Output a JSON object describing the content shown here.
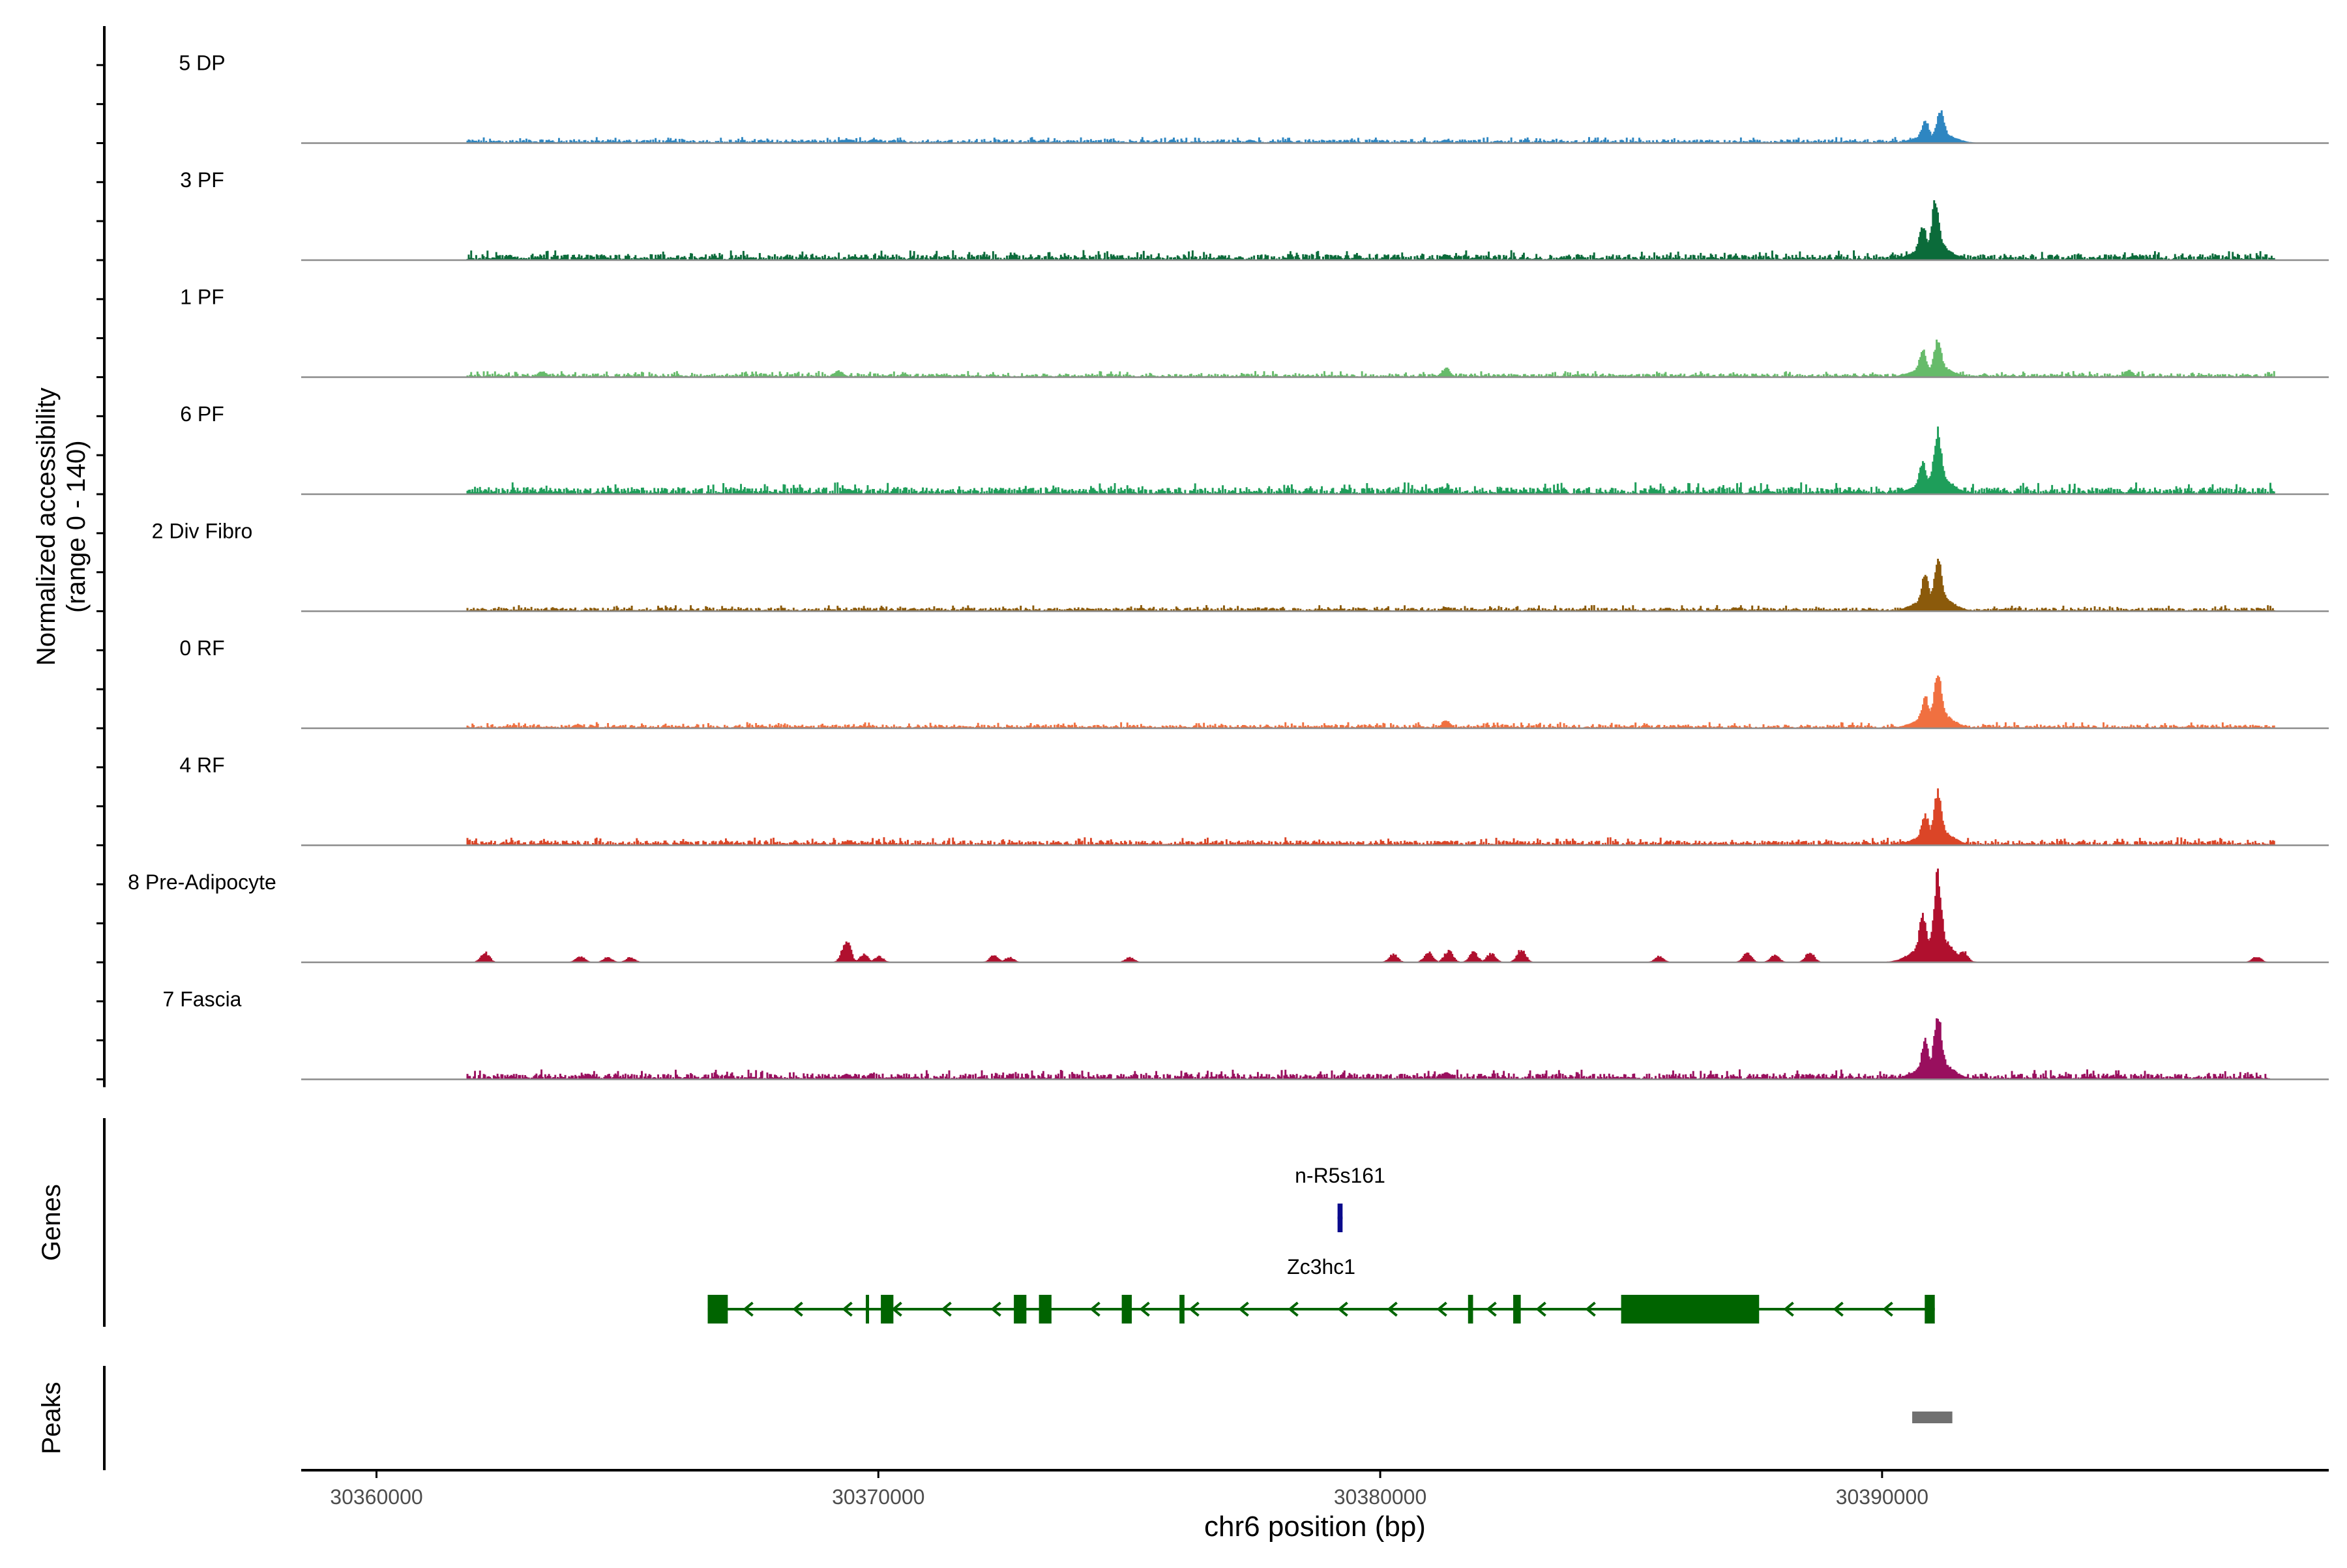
{
  "chart_data": {
    "type": "area",
    "region": "chr6",
    "xlabel": "chr6 position (bp)",
    "xlim": [
      30358500,
      30398900
    ],
    "x_ticks": [
      30360000,
      30370000,
      30380000,
      30390000
    ],
    "x_tick_labels": [
      "30360000",
      "30370000",
      "30380000",
      "30390000"
    ],
    "coverage_panel": {
      "ylabel": "Normalized accessibility\n(range 0 - 140)",
      "ylim": [
        0,
        140
      ],
      "series": [
        {
          "name": "5 DP",
          "color": "#2E86C1",
          "baseline": 2,
          "noise": [
            [
              30361800,
              30391000,
              1.5
            ]
          ],
          "extra_bumps": [
            [
              30369400,
              4
            ],
            [
              30369900,
              4
            ],
            [
              30377400,
              3
            ],
            [
              30381300,
              3
            ]
          ],
          "peaks": [
            [
              30390850,
              22
            ],
            [
              30391150,
              32
            ]
          ]
        },
        {
          "name": "3 PF",
          "color": "#0B6B3A",
          "baseline": 3,
          "noise": [
            [
              30361800,
              30397800,
              2.5
            ]
          ],
          "extra_bumps": [
            [
              30369500,
              4
            ],
            [
              30381300,
              6
            ],
            [
              30395000,
              5
            ]
          ],
          "peaks": [
            [
              30390800,
              34
            ],
            [
              30391050,
              58
            ]
          ]
        },
        {
          "name": "1 PF",
          "color": "#66BB6A",
          "baseline": 2,
          "noise": [
            [
              30361800,
              30397800,
              1.5
            ]
          ],
          "extra_bumps": [
            [
              30363300,
              6
            ],
            [
              30369200,
              6
            ],
            [
              30381300,
              9
            ],
            [
              30394900,
              7
            ]
          ],
          "peaks": [
            [
              30390800,
              26
            ],
            [
              30391100,
              36
            ]
          ]
        },
        {
          "name": "6 PF",
          "color": "#1E9E5A",
          "baseline": 3,
          "noise": [
            [
              30361800,
              30397800,
              3
            ]
          ],
          "extra_bumps": [
            [
              30369400,
              5
            ],
            [
              30381300,
              6
            ],
            [
              30395000,
              5
            ]
          ],
          "peaks": [
            [
              30390800,
              30
            ],
            [
              30391100,
              62
            ]
          ]
        },
        {
          "name": "2 Div Fibro",
          "color": "#8B5A0B",
          "baseline": 2,
          "noise": [
            [
              30361800,
              30397800,
              1.5
            ]
          ],
          "extra_bumps": [
            [
              30381300,
              4
            ]
          ],
          "peaks": [
            [
              30390850,
              36
            ],
            [
              30391100,
              52
            ]
          ]
        },
        {
          "name": "0 RF",
          "color": "#F07040",
          "baseline": 2,
          "noise": [
            [
              30361800,
              30397800,
              1.5
            ]
          ],
          "extra_bumps": [
            [
              30364000,
              4
            ],
            [
              30381300,
              8
            ]
          ],
          "peaks": [
            [
              30390850,
              30
            ],
            [
              30391100,
              54
            ]
          ]
        },
        {
          "name": "4 RF",
          "color": "#DB4527",
          "baseline": 2,
          "noise": [
            [
              30361800,
              30397800,
              2
            ]
          ],
          "extra_bumps": [
            [
              30369400,
              5
            ],
            [
              30381300,
              4
            ]
          ],
          "peaks": [
            [
              30390850,
              30
            ],
            [
              30391100,
              54
            ]
          ]
        },
        {
          "name": "8 Pre-Adipocyte",
          "color": "#B0102E",
          "baseline": 0,
          "noise": [],
          "extra_bumps": [
            [
              30362150,
              10
            ],
            [
              30364050,
              6
            ],
            [
              30364600,
              5
            ],
            [
              30365050,
              5
            ],
            [
              30369350,
              22
            ],
            [
              30369700,
              8
            ],
            [
              30370000,
              6
            ],
            [
              30372300,
              7
            ],
            [
              30372600,
              5
            ],
            [
              30375000,
              5
            ],
            [
              30380250,
              8
            ],
            [
              30380950,
              10
            ],
            [
              30381350,
              12
            ],
            [
              30381850,
              10
            ],
            [
              30382200,
              9
            ],
            [
              30382800,
              13
            ],
            [
              30385550,
              6
            ],
            [
              30387300,
              9
            ],
            [
              30387850,
              8
            ],
            [
              30388550,
              10
            ],
            [
              30391600,
              12
            ],
            [
              30397450,
              6
            ]
          ],
          "peaks": [
            [
              30390800,
              46
            ],
            [
              30391100,
              86
            ]
          ]
        },
        {
          "name": "7 Fascia",
          "color": "#990F5E",
          "baseline": 2,
          "noise": [
            [
              30361800,
              30397700,
              2.5
            ]
          ],
          "extra_bumps": [
            [
              30364200,
              5
            ],
            [
              30369350,
              6
            ],
            [
              30381300,
              8
            ]
          ],
          "peaks": [
            [
              30390850,
              38
            ],
            [
              30391100,
              64
            ]
          ]
        }
      ]
    },
    "genes_panel": {
      "ylabel": "Genes",
      "genes": [
        {
          "name": "n-R5s161",
          "start": 30379150,
          "end": 30379250,
          "strand": "-",
          "color": "#0A0A8C",
          "row": 0,
          "exons": [
            [
              30379150,
              30379250
            ]
          ]
        },
        {
          "name": "Zc3hc1",
          "start": 30366600,
          "end": 30391050,
          "strand": "-",
          "color": "#006400",
          "row": 1,
          "exons": [
            [
              30366600,
              30367000
            ],
            [
              30369750,
              30369780
            ],
            [
              30370050,
              30370300
            ],
            [
              30372700,
              30372950
            ],
            [
              30373200,
              30373450
            ],
            [
              30374850,
              30375050
            ],
            [
              30376000,
              30376100
            ],
            [
              30381750,
              30381850
            ],
            [
              30382650,
              30382800
            ],
            [
              30384800,
              30387550
            ],
            [
              30390850,
              30391050
            ]
          ]
        }
      ]
    },
    "peaks_panel": {
      "ylabel": "Peaks",
      "peaks": [
        [
          30390600,
          30391400
        ]
      ],
      "color": "#707070"
    }
  }
}
